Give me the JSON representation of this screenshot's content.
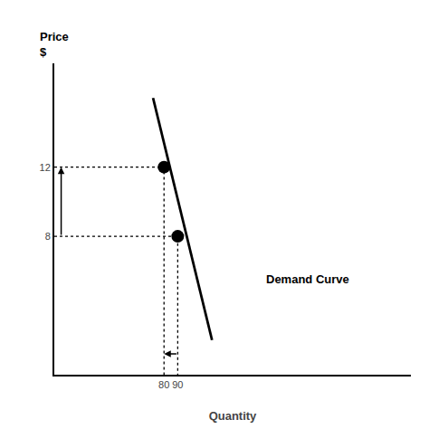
{
  "chart_data": {
    "type": "line",
    "xlabel": "Quantity",
    "ylabel": "Price\n$",
    "xlim": [
      0,
      260
    ],
    "ylim": [
      0,
      18
    ],
    "xticks": [
      80,
      90
    ],
    "yticks": [
      8,
      12
    ],
    "grid": false,
    "series": [
      {
        "type": "line",
        "x": [
          72,
          115
        ],
        "values": [
          16,
          2
        ],
        "color": "#000000",
        "line_style": "solid"
      },
      {
        "type": "line",
        "x": [
          0,
          80,
          80
        ],
        "values": [
          12,
          12,
          0
        ],
        "color": "#000000",
        "line_style": "dotted"
      },
      {
        "type": "line",
        "x": [
          0,
          90,
          90
        ],
        "values": [
          8,
          8,
          0
        ],
        "color": "#000000",
        "line_style": "dotted"
      },
      {
        "type": "scatter",
        "x": [
          80,
          90
        ],
        "values": [
          12,
          8
        ],
        "color": "#000000",
        "marker": "circle"
      }
    ],
    "annotations": [
      {
        "text": "Demand Curve",
        "x": 185,
        "y": 5.5,
        "color": "#000000"
      }
    ],
    "arrows": [
      {
        "from_x": 5,
        "from_y": 8,
        "x": 5,
        "y": 12,
        "color": "#000000"
      },
      {
        "from_x": 90,
        "from_y": 1.2,
        "x": 80,
        "y": 1.2,
        "color": "#000000"
      }
    ]
  }
}
